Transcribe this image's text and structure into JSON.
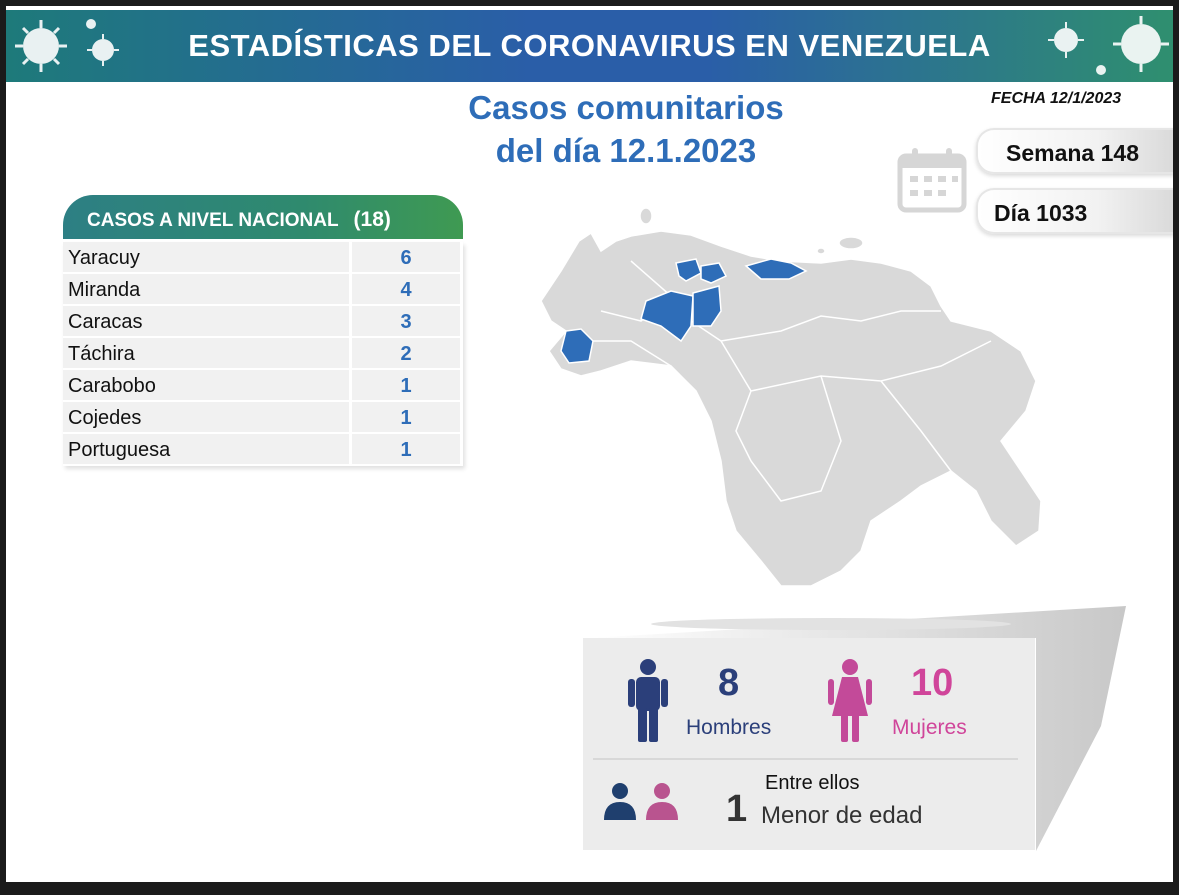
{
  "header": {
    "title": "ESTADÍSTICAS DEL CORONAVIRUS EN VENEZUELA"
  },
  "main_title": {
    "line1": "Casos comunitarios",
    "line2": "del día 12.1.2023"
  },
  "fecha": "FECHA 12/1/2023",
  "semana": "Semana 148",
  "dia": "Día 1033",
  "table": {
    "title": "CASOS A NIVEL NACIONAL",
    "total": "(18)",
    "rows": [
      {
        "state": "Yaracuy",
        "count": "6"
      },
      {
        "state": "Miranda",
        "count": "4"
      },
      {
        "state": "Caracas",
        "count": "3"
      },
      {
        "state": "Táchira",
        "count": "2"
      },
      {
        "state": "Carabobo",
        "count": "1"
      },
      {
        "state": "Cojedes",
        "count": "1"
      },
      {
        "state": "Portuguesa",
        "count": "1"
      }
    ]
  },
  "stats": {
    "men_count": "8",
    "men_label": "Hombres",
    "women_count": "10",
    "women_label": "Mujeres",
    "minors_intro": "Entre ellos",
    "minors_count": "1",
    "minors_label": "Menor de edad"
  },
  "colors": {
    "highlight_state": "#2e6db8",
    "map_base": "#d9d9d9",
    "men": "#2b3f7a",
    "women": "#d0459a"
  },
  "icons": [
    "virus-icon",
    "calendar-icon",
    "man-icon",
    "woman-icon",
    "person-icon"
  ]
}
